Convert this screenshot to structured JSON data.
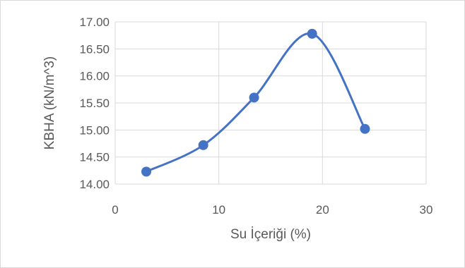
{
  "chart_data": {
    "type": "scatter",
    "title": "",
    "xlabel": "Su İçeriği (%)",
    "ylabel": "KBHA (kN/m^3)",
    "xlim": [
      0,
      30
    ],
    "ylim": [
      14.0,
      17.0
    ],
    "x_ticks": [
      0,
      10,
      20,
      30
    ],
    "x_tick_labels": [
      "0",
      "10",
      "20",
      "30"
    ],
    "y_ticks": [
      14.0,
      14.5,
      15.0,
      15.5,
      16.0,
      16.5,
      17.0
    ],
    "y_tick_labels": [
      "14.00",
      "14.50",
      "15.00",
      "15.50",
      "16.00",
      "16.50",
      "17.00"
    ],
    "grid": true,
    "smooth_line": true,
    "series": [
      {
        "x": [
          3.0,
          8.5,
          13.4,
          19.0,
          24.1
        ],
        "y": [
          14.23,
          14.72,
          15.6,
          16.78,
          15.02
        ],
        "color": "#4472c4"
      }
    ]
  }
}
